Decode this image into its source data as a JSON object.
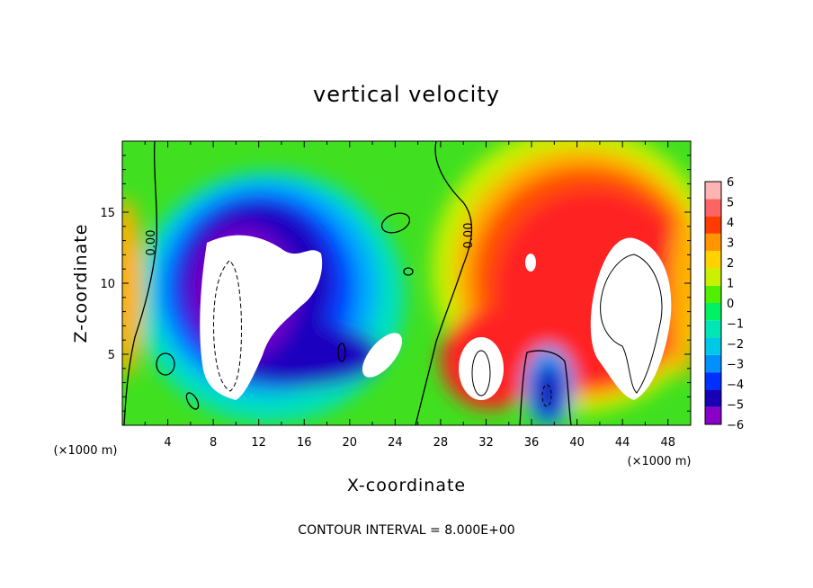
{
  "chart_data": {
    "type": "heatmap",
    "title": "vertical velocity",
    "xlabel": "X-coordinate",
    "ylabel": "Z-coordinate",
    "x_unit": "(×1000 m)",
    "y_unit": "(×1000 m)",
    "xlim": [
      0,
      50
    ],
    "ylim": [
      0,
      20
    ],
    "x_ticks": [
      4,
      8,
      12,
      16,
      20,
      24,
      28,
      32,
      36,
      40,
      44,
      48
    ],
    "y_ticks": [
      5,
      10,
      15
    ],
    "colorbar": {
      "min": -6,
      "max": 6,
      "tick_labels": [
        "6",
        "5",
        "4",
        "3",
        "2",
        "1",
        "0",
        "−1",
        "−2",
        "−3",
        "−4",
        "−5",
        "−6"
      ],
      "colors": [
        "#8b00c8",
        "#1a00b4",
        "#0030ff",
        "#0090ff",
        "#00c8e6",
        "#00e6b4",
        "#00f064",
        "#50f000",
        "#c8f000",
        "#ffd200",
        "#ff9600",
        "#ff3c00",
        "#ff6464",
        "#ffb4b4"
      ]
    },
    "contour_label": "0.00",
    "contour_interval_text": "CONTOUR INTERVAL = 8.000E+00",
    "features": [
      {
        "kind": "downdraft",
        "x": 14,
        "z": 10,
        "w": -7
      },
      {
        "kind": "updraft",
        "x": 43.5,
        "z": 8,
        "w": 7
      },
      {
        "kind": "updraft",
        "x": 31.5,
        "z": 5,
        "w": 6
      },
      {
        "kind": "downdraft",
        "x": 37,
        "z": 3,
        "w": -6
      },
      {
        "kind": "updraft",
        "x": 23,
        "z": 5.5,
        "w": 5
      }
    ]
  }
}
